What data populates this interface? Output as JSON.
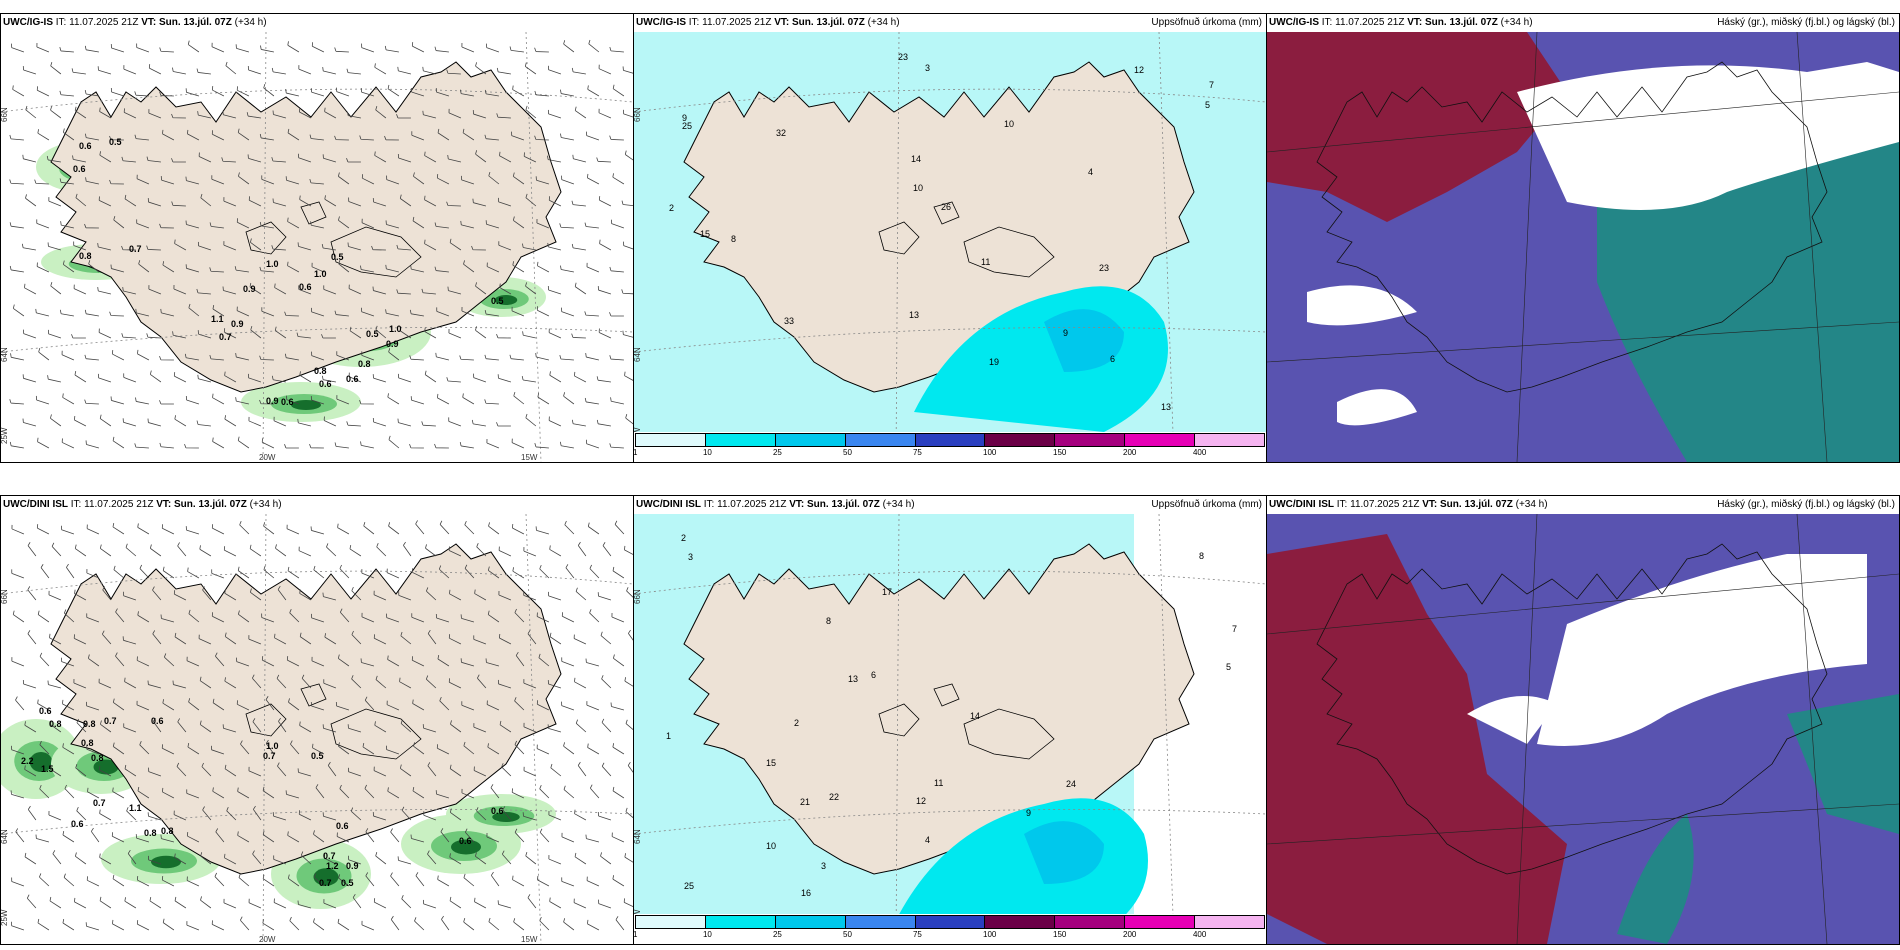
{
  "panels": [
    {
      "id": "p1",
      "model": "UWC/IG-IS",
      "it_label": "IT:",
      "it": "11.07.2025 21Z",
      "vt_label": "VT:",
      "vt": "Sun. 13.júl. 07Z",
      "offset": "(+34 h)",
      "right_title": "",
      "kind": "wind",
      "values": [
        "0.6",
        "0.5",
        "0.6",
        "0.8",
        "0.7",
        "1.0",
        "1.0",
        "0.5",
        "0.9",
        "0.6",
        "0.9",
        "1.1",
        "0.7",
        "0.5",
        "1.0",
        "0.9",
        "0.8",
        "0.8",
        "0.6",
        "0.6",
        "0.9",
        "0.6",
        "0.5"
      ]
    },
    {
      "id": "p2",
      "model": "UWC/IG-IS",
      "it_label": "IT:",
      "it": "11.07.2025 21Z",
      "vt_label": "VT:",
      "vt": "Sun. 13.júl. 07Z",
      "offset": "(+34 h)",
      "right_title": "Uppsöfnuð úrkoma (mm)",
      "kind": "precip",
      "values": [
        "2",
        "3",
        "4",
        "7",
        "9",
        "13",
        "8",
        "10",
        "14",
        "12",
        "26",
        "23",
        "23",
        "25",
        "32",
        "33",
        "19",
        "15",
        "11",
        "13",
        "9",
        "6",
        "5",
        "10"
      ]
    },
    {
      "id": "p3",
      "model": "UWC/IG-IS",
      "it_label": "IT:",
      "it": "11.07.2025 21Z",
      "vt_label": "VT:",
      "vt": "Sun. 13.júl. 07Z",
      "offset": "(+34 h)",
      "right_title": "Háský (gr.), miðský (fj.bl.) og lágský (bl.)",
      "kind": "cloud"
    },
    {
      "id": "p4",
      "model": "UWC/DINI ISL",
      "it_label": "IT:",
      "it": "11.07.2025 21Z",
      "vt_label": "VT:",
      "vt": "Sun. 13.júl. 07Z",
      "offset": "(+34 h)",
      "right_title": "",
      "kind": "wind",
      "values": [
        "0.6",
        "0.8",
        "0.8",
        "0.7",
        "0.6",
        "2.2",
        "1.5",
        "0.8",
        "0.8",
        "0.7",
        "1.1",
        "0.6",
        "0.8",
        "0.8",
        "1.0",
        "0.7",
        "0.5",
        "0.6",
        "0.7",
        "1.2",
        "0.9",
        "0.7",
        "0.5",
        "0.6",
        "0.6"
      ]
    },
    {
      "id": "p5",
      "model": "UWC/DINI ISL",
      "it_label": "IT:",
      "it": "11.07.2025 21Z",
      "vt_label": "VT:",
      "vt": "Sun. 13.júl. 07Z",
      "offset": "(+34 h)",
      "right_title": "Uppsöfnuð úrkoma (mm)",
      "kind": "precip",
      "values": [
        "3",
        "2",
        "1",
        "8",
        "7",
        "9",
        "17",
        "22",
        "25",
        "24",
        "21",
        "14",
        "16",
        "15",
        "11",
        "13",
        "12",
        "10",
        "8",
        "6",
        "5",
        "4",
        "3",
        "2"
      ]
    },
    {
      "id": "p6",
      "model": "UWC/DINI ISL",
      "it_label": "IT:",
      "it": "11.07.2025 21Z",
      "vt_label": "VT:",
      "vt": "Sun. 13.júl. 07Z",
      "offset": "(+34 h)",
      "right_title": "Háský (gr.), miðský (fj.bl.) og lágský (bl.)",
      "kind": "cloud"
    }
  ],
  "axis_labels": {
    "lat_top": "66N",
    "lat_bottom": "64N",
    "lon_left": "20W",
    "lon_right": "15W",
    "lon_far": "25W"
  },
  "colorbar": {
    "ticks": [
      "1",
      "10",
      "25",
      "50",
      "75",
      "100",
      "150",
      "200",
      "400"
    ],
    "colors": [
      "#dffafc",
      "#00e8ef",
      "#00c8ec",
      "#3a86f0",
      "#2a3fc0",
      "#6b0047",
      "#a5007e",
      "#e600b5",
      "#f5b4f0"
    ]
  },
  "colors": {
    "land": "#ede2d6",
    "wind_light": "#c9f0c2",
    "wind_mid": "#6fc97a",
    "wind_dark": "#156e2c",
    "precip_light": "#b8f7f7",
    "precip_mid": "#00e8ef",
    "cloud_high": "#8b1d3f",
    "cloud_mid": "#5953b0",
    "cloud_low": "#1a8f80",
    "cloud_clear": "#ffffff"
  }
}
